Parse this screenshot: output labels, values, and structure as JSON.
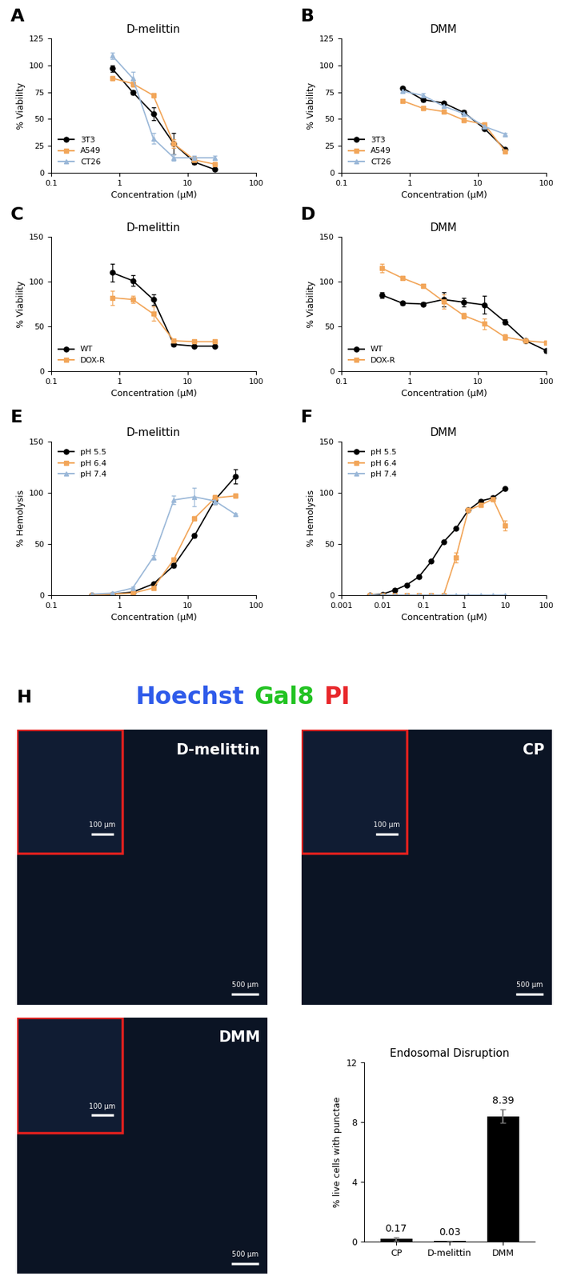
{
  "chart_data": [
    {
      "type": "line",
      "panel": "A",
      "title": "D-melittin",
      "x_label": "Concentration (µM)",
      "y_label": "% Viability",
      "log": "x",
      "xlim": [
        0.1,
        100
      ],
      "xticks": [
        0.1,
        1,
        10,
        100
      ],
      "ylim": [
        0,
        125
      ],
      "yticks": [
        0,
        25,
        50,
        75,
        100,
        125
      ],
      "legend": "lower left",
      "x": [
        0.78,
        1.56,
        3.125,
        6.25,
        12.5,
        25
      ],
      "series": [
        {
          "name": "3T3",
          "color": "#000000",
          "marker": "circle",
          "line_style": "solid",
          "values": [
            97,
            75,
            55,
            27,
            10,
            3
          ],
          "errors": [
            3,
            2,
            6,
            10,
            2,
            1
          ]
        },
        {
          "name": "A549",
          "color": "#f2a65a",
          "marker": "square",
          "line_style": "solid",
          "values": [
            88,
            83,
            72,
            27,
            12,
            8
          ],
          "errors": [
            2,
            3,
            2,
            4,
            3,
            2
          ]
        },
        {
          "name": "CT26",
          "color": "#9bb8d8",
          "marker": "triangle",
          "line_style": "solid",
          "values": [
            109,
            88,
            32,
            14,
            14,
            14
          ],
          "errors": [
            3,
            6,
            5,
            3,
            2,
            2
          ]
        }
      ]
    },
    {
      "type": "line",
      "panel": "B",
      "title": "DMM",
      "x_label": "Concentration (µM)",
      "y_label": "% Viability",
      "log": "x",
      "xlim": [
        0.1,
        100
      ],
      "xticks": [
        0.1,
        1,
        10,
        100
      ],
      "ylim": [
        0,
        125
      ],
      "yticks": [
        0,
        25,
        50,
        75,
        100,
        125
      ],
      "legend": "lower left",
      "x": [
        0.78,
        1.56,
        3.125,
        6.25,
        12.5,
        25
      ],
      "series": [
        {
          "name": "3T3",
          "color": "#000000",
          "marker": "circle",
          "line_style": "solid",
          "values": [
            79,
            68,
            65,
            56,
            41,
            22
          ],
          "errors": [
            1,
            2,
            1,
            2,
            1,
            1
          ]
        },
        {
          "name": "A549",
          "color": "#f2a65a",
          "marker": "square",
          "line_style": "solid",
          "values": [
            67,
            60,
            57,
            49,
            45,
            20
          ],
          "errors": [
            1,
            2,
            1,
            2,
            1,
            1
          ]
        },
        {
          "name": "CT26",
          "color": "#9bb8d8",
          "marker": "triangle",
          "line_style": "solid",
          "values": [
            76,
            72,
            62,
            55,
            43,
            36
          ],
          "errors": [
            1,
            2,
            1,
            2,
            1,
            1
          ]
        }
      ]
    },
    {
      "type": "line",
      "panel": "C",
      "title": "D-melittin",
      "x_label": "Concentration (µM)",
      "y_label": "% Viability",
      "log": "x",
      "xlim": [
        0.1,
        100
      ],
      "xticks": [
        0.1,
        1,
        10,
        100
      ],
      "ylim": [
        0,
        150
      ],
      "yticks": [
        0,
        50,
        100,
        150
      ],
      "legend": "lower left",
      "x": [
        0.78,
        1.56,
        3.125,
        6.25,
        12.5,
        25
      ],
      "series": [
        {
          "name": "WT",
          "color": "#000000",
          "marker": "circle",
          "line_style": "solid",
          "values": [
            110,
            101,
            80,
            30,
            28,
            28
          ],
          "errors": [
            10,
            6,
            6,
            2,
            1,
            1
          ]
        },
        {
          "name": "DOX-R",
          "color": "#f2a65a",
          "marker": "square",
          "line_style": "solid",
          "values": [
            82,
            80,
            64,
            34,
            33,
            33
          ],
          "errors": [
            8,
            4,
            8,
            2,
            1,
            1
          ]
        }
      ]
    },
    {
      "type": "line",
      "panel": "D",
      "title": "DMM",
      "x_label": "Concentration (µM)",
      "y_label": "% Viability",
      "log": "x",
      "xlim": [
        0.1,
        100
      ],
      "xticks": [
        0.1,
        1,
        10,
        100
      ],
      "ylim": [
        0,
        150
      ],
      "yticks": [
        0,
        50,
        100,
        150
      ],
      "legend": "lower left",
      "x": [
        0.39,
        0.78,
        1.56,
        3.125,
        6.25,
        12.5,
        25,
        50,
        100
      ],
      "series": [
        {
          "name": "WT",
          "color": "#000000",
          "marker": "circle",
          "line_style": "solid",
          "values": [
            85,
            76,
            75,
            80,
            77,
            74,
            55,
            34,
            23
          ],
          "errors": [
            3,
            2,
            2,
            8,
            5,
            10,
            3,
            2,
            2
          ]
        },
        {
          "name": "DOX-R",
          "color": "#f2a65a",
          "marker": "square",
          "line_style": "solid",
          "values": [
            115,
            104,
            95,
            78,
            62,
            53,
            38,
            34,
            32
          ],
          "errors": [
            5,
            2,
            2,
            8,
            3,
            6,
            3,
            2,
            2
          ]
        }
      ]
    },
    {
      "type": "line",
      "panel": "E",
      "title": "D-melittin",
      "x_label": "Concentration (µM)",
      "y_label": "% Hemolysis",
      "log": "x",
      "xlim": [
        0.1,
        100
      ],
      "xticks": [
        0.1,
        1,
        10,
        100
      ],
      "ylim": [
        0,
        150
      ],
      "yticks": [
        0,
        50,
        100,
        150
      ],
      "legend": "upper left",
      "x": [
        0.39,
        0.78,
        1.56,
        3.125,
        6.25,
        12.5,
        25,
        50
      ],
      "series": [
        {
          "name": "pH 5.5",
          "color": "#000000",
          "marker": "circle",
          "line_style": "solid",
          "values": [
            0,
            1,
            3,
            11,
            29,
            58,
            93,
            116
          ],
          "errors": [
            0,
            0,
            1,
            1,
            2,
            2,
            4,
            7
          ]
        },
        {
          "name": "pH 6.4",
          "color": "#f2a65a",
          "marker": "square",
          "line_style": "solid",
          "values": [
            0,
            1,
            2,
            7,
            35,
            75,
            95,
            97
          ],
          "errors": [
            0,
            0,
            0,
            1,
            2,
            2,
            3,
            2
          ]
        },
        {
          "name": "pH 7.4",
          "color": "#9bb8d8",
          "marker": "triangle",
          "line_style": "solid",
          "values": [
            1,
            2,
            7,
            37,
            93,
            96,
            92,
            79
          ],
          "errors": [
            0,
            0,
            1,
            2,
            4,
            9,
            3,
            1
          ]
        }
      ]
    },
    {
      "type": "line",
      "panel": "F",
      "title": "DMM",
      "x_label": "Concentration (µM)",
      "y_label": "% Hemolysis",
      "log": "x",
      "xlim": [
        0.001,
        100
      ],
      "xticks": [
        0.001,
        0.01,
        0.1,
        1,
        10,
        100
      ],
      "ylim": [
        0,
        150
      ],
      "yticks": [
        0,
        50,
        100,
        150
      ],
      "legend": "upper left",
      "x": [
        0.005,
        0.01,
        0.02,
        0.039,
        0.078,
        0.156,
        0.3125,
        0.625,
        1.25,
        2.5,
        5,
        10
      ],
      "series": [
        {
          "name": "pH 5.5",
          "color": "#000000",
          "marker": "circle",
          "line_style": "solid",
          "values": [
            0,
            1,
            5,
            10,
            18,
            33,
            52,
            65,
            83,
            92,
            95,
            104
          ],
          "errors": [
            0,
            0,
            1,
            1,
            1,
            1,
            1,
            1,
            1,
            1,
            2,
            1
          ]
        },
        {
          "name": "pH 6.4",
          "color": "#f2a65a",
          "marker": "square",
          "line_style": "solid",
          "values": [
            0,
            0,
            0,
            0,
            0,
            0,
            0,
            37,
            83,
            88,
            94,
            68
          ],
          "errors": [
            0,
            0,
            0,
            0,
            0,
            0,
            0,
            5,
            2,
            2,
            2,
            5
          ]
        },
        {
          "name": "pH 7.4",
          "color": "#9bb8d8",
          "marker": "triangle",
          "line_style": "solid",
          "values": [
            0,
            0,
            0,
            0,
            0,
            0,
            0,
            0,
            0,
            0,
            0,
            0
          ],
          "errors": [
            0,
            0,
            0,
            0,
            0,
            0,
            0,
            0,
            0,
            0,
            0,
            0
          ]
        }
      ]
    },
    {
      "type": "bar",
      "title": "Endosomal Disruption",
      "y_label": "% live cells with punctae",
      "categories": [
        "CP",
        "D-melittin",
        "DMM"
      ],
      "values": [
        0.17,
        0.03,
        8.39
      ],
      "errors": [
        0.12,
        0.02,
        0.45
      ],
      "color": "#000000",
      "ylim": [
        0,
        12
      ],
      "yticks": [
        0,
        4,
        8,
        12
      ],
      "data_labels": true
    }
  ],
  "micrographs": {
    "panel": "H",
    "channels": [
      {
        "name": "Hoechst",
        "color": "#2f5bea"
      },
      {
        "name": "Gal8",
        "color": "#22c322"
      },
      {
        "name": "PI",
        "color": "#e8262a"
      }
    ],
    "images": [
      {
        "label": "D-melittin",
        "inset_scale_bar": "100 µm",
        "scale_bar": "500 µm"
      },
      {
        "label": "CP",
        "inset_scale_bar": "100 µm",
        "scale_bar": "500 µm"
      },
      {
        "label": "DMM",
        "inset_scale_bar": "100 µm",
        "scale_bar": "500 µm"
      }
    ]
  }
}
